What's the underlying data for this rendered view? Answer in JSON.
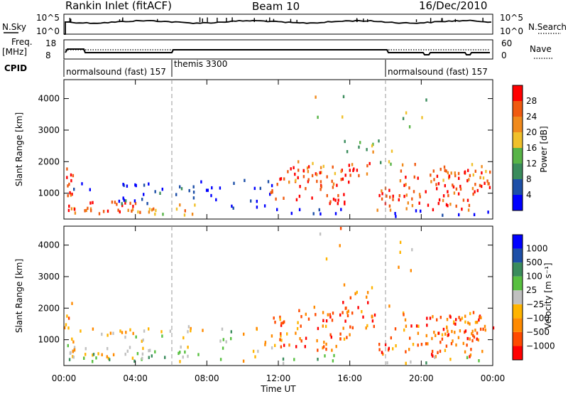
{
  "header": {
    "title": "Rankin Inlet (fitACF)",
    "beam": "Beam 10",
    "date": "16/Dec/2010"
  },
  "top_panels": {
    "nsky_label": "N.Sky",
    "nsearch_label": "N.Search",
    "nsky_ticks": [
      "10^5",
      "10^0"
    ],
    "nsearch_ticks": [
      "10^5",
      "10^0"
    ],
    "freq_label_1": "Freq.",
    "freq_label_2": "[MHz]",
    "freq_ticks": [
      "18",
      "8"
    ],
    "nave_ticks": [
      "60",
      "0"
    ],
    "nave_label": "Nave",
    "cpid_label": "CPID",
    "cpid_modes": [
      {
        "label": "normalsound (fast) 157",
        "start_hour": 0,
        "end_hour": 6
      },
      {
        "label": "themis 3300",
        "start_hour": 6,
        "end_hour": 18
      },
      {
        "label": "normalsound (fast) 157",
        "start_hour": 18,
        "end_hour": 24
      }
    ]
  },
  "colors": {
    "power": [
      "#0000ff",
      "#1d4fa8",
      "#3a8c5c",
      "#58b447",
      "#f0c02a",
      "#f08a1c",
      "#f05a10",
      "#ff0000"
    ],
    "velocity": [
      "#ff0000",
      "#ff4a00",
      "#ff8a00",
      "#ffb400",
      "#c0c0c0",
      "#58c040",
      "#3a8c5c",
      "#1d4fa8",
      "#0000ff"
    ]
  },
  "chart_data": [
    {
      "type": "heatmap",
      "name_id": "power",
      "xlabel": "",
      "ylabel": "Slant Range [km]",
      "xlim": [
        0,
        24
      ],
      "ylim": [
        180,
        4600
      ],
      "yticks": [
        "1000",
        "2000",
        "3000",
        "4000"
      ],
      "colorbar_label": "Power [dB]",
      "colorbar_ticks": [
        "4",
        "8",
        "12",
        "16",
        "20",
        "24",
        "28"
      ],
      "grid": false
    },
    {
      "type": "heatmap",
      "name_id": "velocity",
      "xlabel": "Time UT",
      "ylabel": "Slant Range [km]",
      "xlim": [
        0,
        24
      ],
      "ylim": [
        180,
        4600
      ],
      "xticks": [
        "00:00",
        "04:00",
        "08:00",
        "12:00",
        "16:00",
        "20:00",
        "00:00"
      ],
      "yticks": [
        "1000",
        "2000",
        "3000",
        "4000"
      ],
      "colorbar_label": "Velocity [m s⁻¹]",
      "colorbar_ticks": [
        "1000",
        "500",
        "100",
        "25",
        "−25",
        "−100",
        "−500",
        "−1000"
      ],
      "grid": false
    }
  ]
}
